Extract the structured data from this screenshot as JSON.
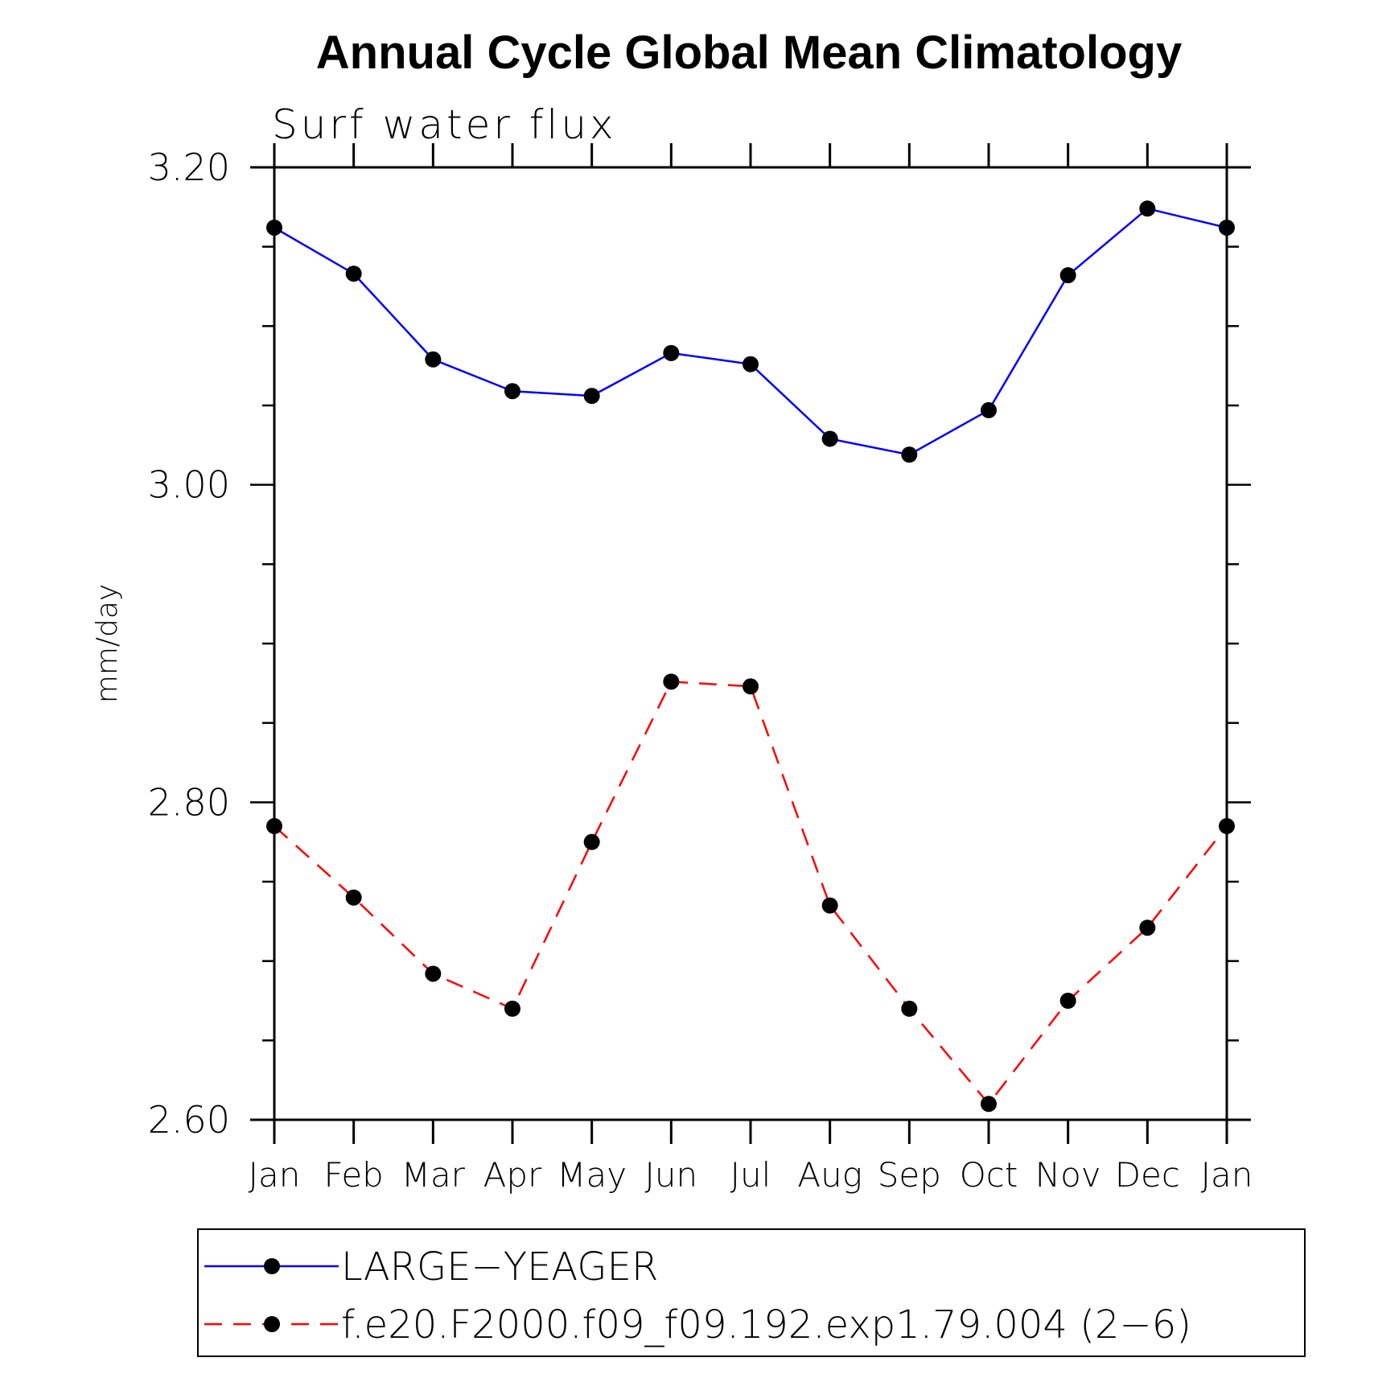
{
  "chart_data": {
    "type": "line",
    "title": "Annual Cycle Global Mean Climatology",
    "subtitle": "Surf water flux",
    "xlabel": "",
    "ylabel": "mm/day",
    "categories": [
      "Jan",
      "Feb",
      "Mar",
      "Apr",
      "May",
      "Jun",
      "Jul",
      "Aug",
      "Sep",
      "Oct",
      "Nov",
      "Dec",
      "Jan"
    ],
    "yticks": [
      "2.60",
      "2.80",
      "3.00",
      "3.20"
    ],
    "ylim": [
      2.6,
      3.2
    ],
    "grid": false,
    "legend_position": "bottom",
    "series": [
      {
        "name": "LARGE−YEAGER",
        "color": "#0000ff",
        "line_style": "solid",
        "marker": "circle",
        "values": [
          3.162,
          3.133,
          3.079,
          3.059,
          3.056,
          3.083,
          3.076,
          3.029,
          3.019,
          3.047,
          3.132,
          3.174,
          3.162
        ]
      },
      {
        "name": "f.e20.F2000.f09_f09.192.exp1.79.004 (2−6)",
        "color": "#ff0000",
        "line_style": "dashed",
        "marker": "circle",
        "values": [
          2.785,
          2.74,
          2.692,
          2.67,
          2.775,
          2.876,
          2.873,
          2.735,
          2.67,
          2.61,
          2.675,
          2.721,
          2.785
        ]
      }
    ]
  }
}
